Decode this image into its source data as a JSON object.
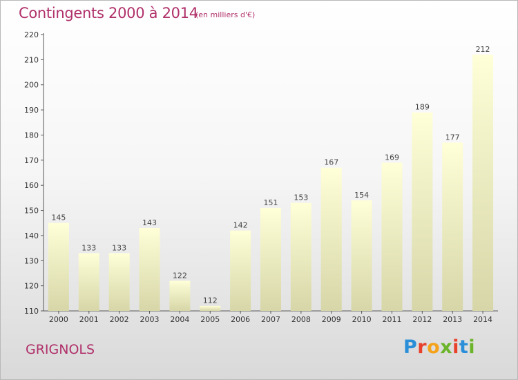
{
  "header": {
    "title": "Contingents 2000 à 2014",
    "subtitle": "(en milliers d'€)"
  },
  "footer": {
    "commune": "GRIGNOLS",
    "brand": "Proxiti"
  },
  "colors": {
    "title": "#b0306a",
    "bar_top": "#ffffd8",
    "bar_bottom": "#d6d6a8",
    "brand_letters": [
      "#2a8fd8",
      "#e8402a",
      "#f4a21a",
      "#6bb42a",
      "#e8402a",
      "#2a8fd8",
      "#6bb42a"
    ]
  },
  "chart_data": {
    "type": "bar",
    "categories": [
      "2000",
      "2001",
      "2002",
      "2003",
      "2004",
      "2005",
      "2006",
      "2007",
      "2008",
      "2009",
      "2010",
      "2011",
      "2012",
      "2013",
      "2014"
    ],
    "values": [
      145,
      133,
      133,
      143,
      122,
      112,
      142,
      151,
      153,
      167,
      154,
      169,
      189,
      177,
      212
    ],
    "yticks": [
      110,
      120,
      130,
      140,
      150,
      160,
      170,
      180,
      190,
      200,
      210,
      220
    ],
    "ylim": [
      110,
      220
    ],
    "title": "Contingents 2000 à 2014",
    "xlabel": "",
    "ylabel": "",
    "grid": false,
    "data_labels": true
  }
}
